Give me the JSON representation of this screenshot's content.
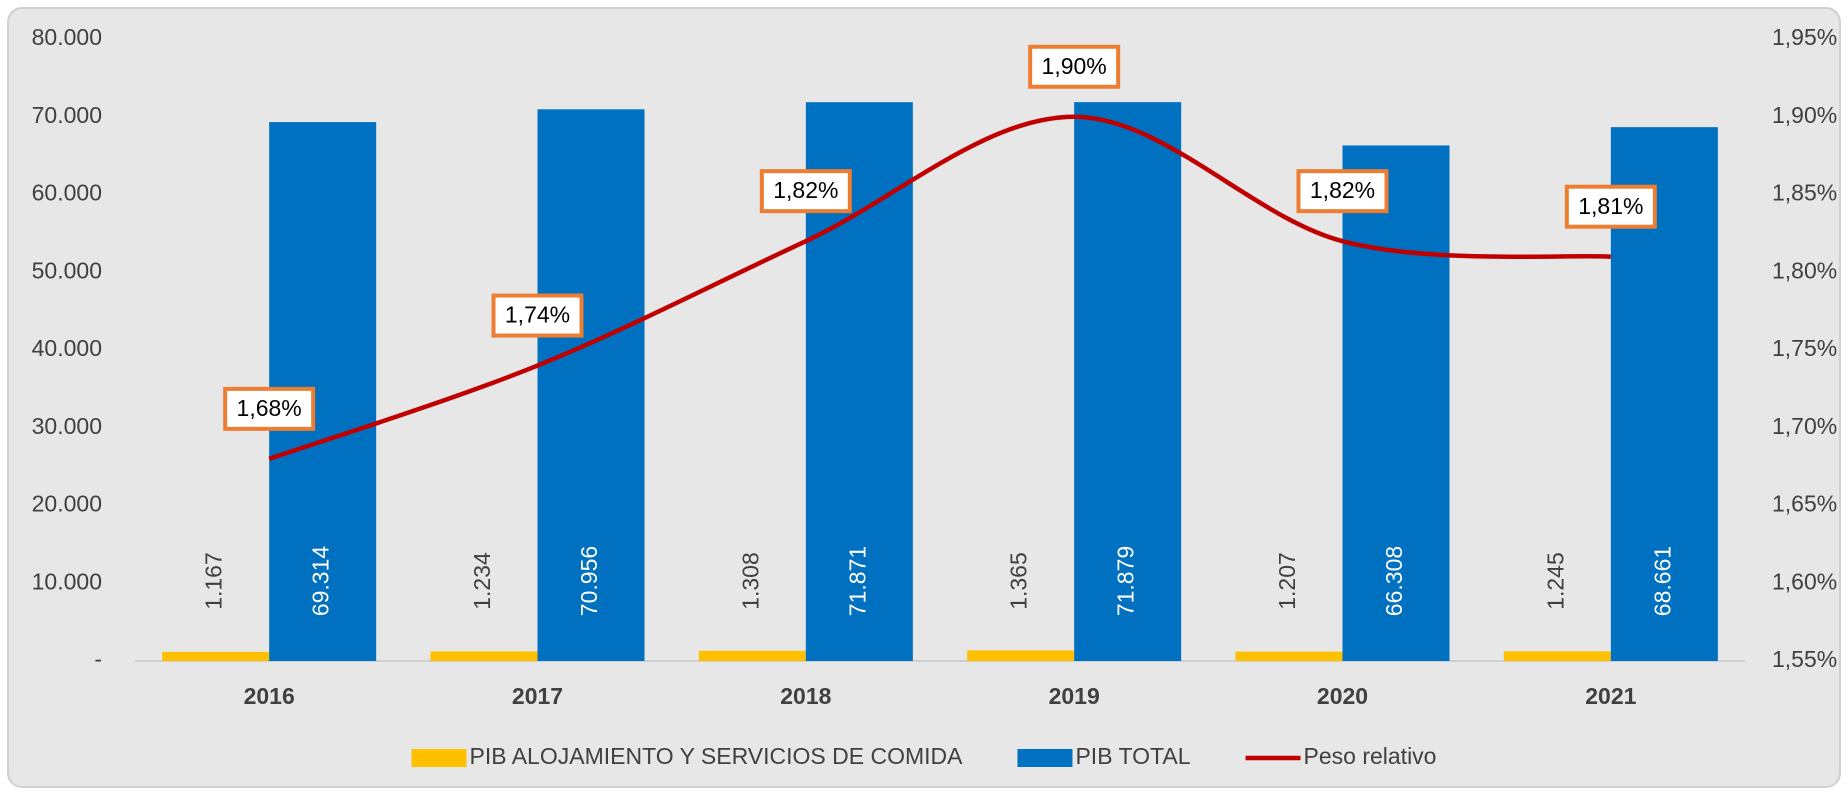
{
  "chart_data": {
    "type": "bar",
    "categories": [
      "2016",
      "2017",
      "2018",
      "2019",
      "2020",
      "2021"
    ],
    "series": [
      {
        "name": "PIB ALOJAMIENTO Y SERVICIOS DE COMIDA",
        "color": "#ffc000",
        "type": "bar",
        "values": [
          1167,
          1234,
          1308,
          1365,
          1207,
          1245
        ],
        "value_labels": [
          "1.167",
          "1.234",
          "1.308",
          "1.365",
          "1.207",
          "1.245"
        ]
      },
      {
        "name": "PIB TOTAL",
        "color": "#0070c0",
        "type": "bar",
        "values": [
          69314,
          70956,
          71871,
          71879,
          66308,
          68661
        ],
        "value_labels": [
          "69.314",
          "70.956",
          "71.871",
          "71.879",
          "66.308",
          "68.661"
        ]
      },
      {
        "name": "Peso relativo",
        "color": "#c00000",
        "type": "line",
        "axis": "y2",
        "values": [
          1.68,
          1.74,
          1.82,
          1.9,
          1.82,
          1.81
        ],
        "value_labels": [
          "1,68%",
          "1,74%",
          "1,82%",
          "1,90%",
          "1,82%",
          "1,81%"
        ]
      }
    ],
    "ylim": [
      0,
      80000
    ],
    "yticks": [
      {
        "value": 0,
        "label": "-"
      },
      {
        "value": 10000,
        "label": "10.000"
      },
      {
        "value": 20000,
        "label": "20.000"
      },
      {
        "value": 30000,
        "label": "30.000"
      },
      {
        "value": 40000,
        "label": "40.000"
      },
      {
        "value": 50000,
        "label": "50.000"
      },
      {
        "value": 60000,
        "label": "60.000"
      },
      {
        "value": 70000,
        "label": "70.000"
      },
      {
        "value": 80000,
        "label": "80.000"
      }
    ],
    "y2lim": [
      1.55,
      1.95
    ],
    "y2ticks": [
      {
        "value": 1.55,
        "label": "1,55%"
      },
      {
        "value": 1.6,
        "label": "1,60%"
      },
      {
        "value": 1.65,
        "label": "1,65%"
      },
      {
        "value": 1.7,
        "label": "1,70%"
      },
      {
        "value": 1.75,
        "label": "1,75%"
      },
      {
        "value": 1.8,
        "label": "1,80%"
      },
      {
        "value": 1.85,
        "label": "1,85%"
      },
      {
        "value": 1.9,
        "label": "1,90%"
      },
      {
        "value": 1.95,
        "label": "1,95%"
      }
    ],
    "legend": "bottom",
    "grid": false
  }
}
